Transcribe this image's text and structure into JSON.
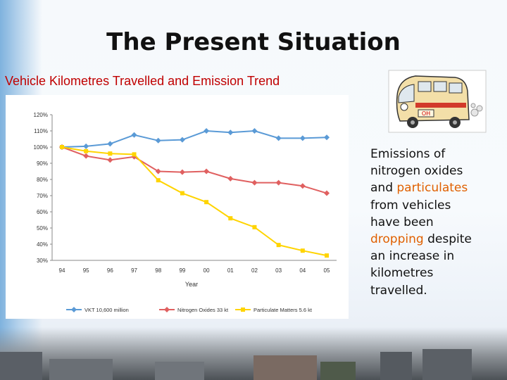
{
  "slide": {
    "title": "The Present Situation",
    "subtitle": "Vehicle Kilometres Travelled and Emission Trend"
  },
  "note": {
    "line1": "Emissions of",
    "line2": "nitrogen oxides",
    "line3a": "and ",
    "line3b": "particulates",
    "line4": "from vehicles",
    "line5": "have been",
    "line6a": "dropping",
    "line6b": " despite",
    "line7": "an increase in",
    "line8": "kilometres",
    "line9": "travelled.",
    "highlight_color": "#e06000"
  },
  "bus_sign": "OH",
  "chart_data": {
    "type": "line",
    "categories": [
      "94",
      "95",
      "96",
      "97",
      "98",
      "99",
      "00",
      "01",
      "02",
      "03",
      "04",
      "05"
    ],
    "yticks": [
      "120%",
      "110%",
      "100%",
      "90%",
      "80%",
      "70%",
      "60%",
      "50%",
      "40%",
      "30%"
    ],
    "ylim": [
      30,
      120
    ],
    "xlabel": "Year",
    "series": [
      {
        "name": "VKT 10,600 million",
        "color": "#5a9ad6",
        "marker": "diamond",
        "values": [
          100,
          100.5,
          102,
          107.5,
          104,
          104.5,
          110,
          109,
          110,
          105.5,
          105.5,
          106
        ]
      },
      {
        "name": "Nitrogen Oxides 33 kt",
        "color": "#e06060",
        "marker": "diamond",
        "values": [
          100,
          94.5,
          92,
          94,
          85,
          84.5,
          85,
          80.5,
          78,
          78,
          76,
          71.5
        ]
      },
      {
        "name": "Particulate Matters 5.6 kt",
        "color": "#ffd400",
        "marker": "square",
        "values": [
          100,
          97.5,
          96,
          95.5,
          79.5,
          71.5,
          66,
          56,
          50.5,
          39.5,
          36,
          33
        ]
      }
    ]
  }
}
